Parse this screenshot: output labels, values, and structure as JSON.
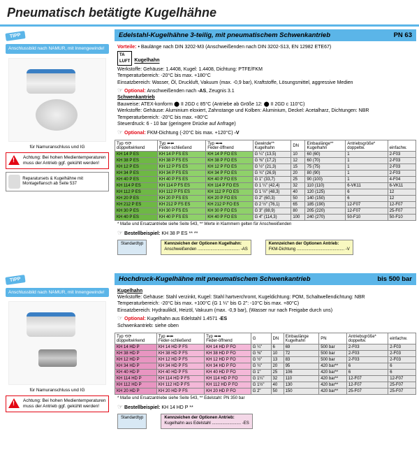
{
  "page_title": "Pneumatisch betätigte Kugelhähne",
  "tipp_label": "TIPP",
  "namur_text": "Anschlussbild nach NAMUR, mit Innengewinde!",
  "section1": {
    "title": "Edelstahl-Kugelhähne 3-teilig, mit pneumatischem Schwenkantrieb",
    "pn": "PN 63",
    "vorteile_label": "Vorteile:",
    "vorteile_text": " • Baulänge nach DIN 3202-M3 (Anschweißenden nach DIN 3202-S13, EN 12982 ETE67)",
    "kh_label": "Kugelhahn",
    "werkstoffe": "Werkstoffe: Gehäuse: 1.4408, Kugel: 1.4408, Dichtung: PTFE/FKM",
    "temp": "Temperaturbereich: -20°C bis max. +180°C",
    "einsatz": "Einsatzbereich: Wasser, Öl, Druckluft, Vakuum (max. -0,9 bar), Kraftstoffe, Lösungsmittel, aggressive Medien",
    "opt1": "Optional: Anschweißenden nach -AS, Zeugnis 3.1",
    "schwenk_label": "Schwenkantrieb",
    "bauweise": "Bauweise: ATEX-konform ⬤ II 2GD c 85°C (Antriebe ab Größe 12: ⬤ II 2GD c 110°C)",
    "werkstoffe2": "Werkstoffe: Gehäuse: Aluminium eloxiert, Zahnstange und Kolben: Aluminium, Deckel: Acetalharz, Dichtungen: NBR",
    "temp2": "Temperaturbereich: -20°C bis max. +80°C",
    "steuer": "Steuerdruck: 6 - 10 bar (geringere Drücke auf Anfrage)",
    "opt2": "Optional: FKM-Dichtung (-20°C bis max. +120°C) -V",
    "img_caption": "für Namuranschluss und IG",
    "warning": "Achtung: Bei hohen Medientemperaturen muss der Antrieb ggf. gekühlt werden!",
    "spare": "Reparatursets & Kugelhähne mit Montageflansch ab Seite 537",
    "footnote": "* Maße und Ersatzantriebe siehe Seite 543, ** Werte in Klammern gelten für Anschweißenden",
    "order_label": "Bestellbeispiel:",
    "order_ex": "KH 38 P ES ** **",
    "callout1_t": "Standardtyp",
    "callout2_h": "Kennzeichen der Optionen Kugelhahn:",
    "callout2_t": "Anschweißenden .................................... -AS",
    "callout3_h": "Kennzeichen der Optionen Antrieb:",
    "callout3_t": "FKM-Dichtung ......................................... -V",
    "headers": [
      "Typ ⟲⟳\ndoppeltwirkend",
      "Typ ⬅⬅\nFeder-schließend",
      "Typ ➡➡\nFeder-öffnend",
      "Gewinde**\nKugelhahn",
      "DN",
      "Einbaulänge**\nKugelhahn",
      "Antriebsgröße*\ndoppeltw.",
      "\neinfachw."
    ],
    "rows": [
      [
        "KH 14 P ES",
        "KH 14 P FS ES",
        "KH 14 P FO ES",
        "G ¼\" (13,5)",
        "10",
        "60 (60)",
        "1",
        "2-F03"
      ],
      [
        "KH 38 P ES",
        "KH 38 P FS ES",
        "KH 38 P FO ES",
        "G ⅜\" (17,2)",
        "12",
        "60 (70)",
        "1",
        "2-F03"
      ],
      [
        "KH 12 P ES",
        "KH 12 P FS ES",
        "KH 12 P FO ES",
        "G ½\" (21,3)",
        "15",
        "75 (75)",
        "1",
        "2-F03"
      ],
      [
        "KH 34 P ES",
        "KH 34 P FS ES",
        "KH 34 P FO ES",
        "G ¾\" (26,9)",
        "20",
        "80 (90)",
        "1",
        "2-F03"
      ],
      [
        "KH 40 P ES",
        "KH 40 P FS ES",
        "KH 40 P FO ES",
        "G 1\" (33,7)",
        "25",
        "90 (100)",
        "1",
        "4-F04"
      ],
      [
        "KH 114 P ES",
        "KH 114 P FS ES",
        "KH 114 P FO ES",
        "G 1 ¼\" (42,4)",
        "32",
        "110 (110)",
        "6-VK11",
        "6-VK11"
      ],
      [
        "KH 112 P ES",
        "KH 112 P FS ES",
        "KH 112 P FO ES",
        "G 1 ½\" (48,3)",
        "40",
        "120 (125)",
        "6",
        "12"
      ],
      [
        "KH 20 P ES",
        "KH 20 P FS ES",
        "KH 20 P FO ES",
        "G 2\" (60,3)",
        "50",
        "140 (150)",
        "6",
        "12"
      ],
      [
        "KH 212 P ES",
        "KH 212 P FS ES",
        "KH 212 P FO ES",
        "G 2 ½\" (76,1)",
        "65",
        "185 (190)",
        "12-F07",
        "12-F07"
      ],
      [
        "KH 30 P ES",
        "KH 30 P FS ES",
        "KH 30 P FO ES",
        "G 3\" (88,9)",
        "80",
        "205 (220)",
        "12-F07",
        "25-F07"
      ],
      [
        "KH 40 P ES",
        "KH 40 P FS ES",
        "KH 40 P FO ES",
        "G 4\" (114,3)",
        "100",
        "240 (270)",
        "50-F10",
        "50-F10"
      ]
    ]
  },
  "section2": {
    "title": "Hochdruck-Kugelhähne mit pneumatischem Schwenkantrieb",
    "pn": "bis 500 bar",
    "kh_label": "Kugelhahn",
    "werkstoffe": "Werkstoffe: Gehäuse: Stahl verzinkt, Kugel: Stahl hartverchromt, Kugeldichtung: POM, Schaltwellendichtung: NBR",
    "temp": "Temperaturbereich: -20°C bis max. +100°C (G 1 ¼\" bis G 2\": -10°C bis max. +80°C)",
    "einsatz": "Einsatzbereich: Hydrauliköl, Heizöl, Vakuum (max. -0,9 bar), (Wasser nur nach Freigabe durch uns)",
    "opt1": "Optional: Kugelhahn aus Edelstahl 1.4571 -ES",
    "schwenk": "Schwenkantrieb: siehe oben",
    "img_caption": "für Namuranschluss und IG",
    "warning": "Achtung: Bei hohen Medientemperaturen muss der Antrieb ggf. gekühlt werden!",
    "footnote": "* Maße und Ersatzantriebe siehe Seite 543, ** Edelstahl: PN 350 bar",
    "order_label": "Bestellbeispiel:",
    "order_ex": "KH 14 HD P **",
    "callout1_t": "Standardtyp",
    "callout3_h": "Kennzeichen der Optionen Antrieb:",
    "callout3_t": "Kugelhahn aus Edelstahl ......................... -ES",
    "headers": [
      "Typ ⟲⟳\ndoppeltwirkend",
      "Typ ⬅⬅\nFeder-schließend",
      "Typ ➡➡\nFeder-öffnend",
      "G",
      "DN",
      "Einbaulänge\nKugelhahn",
      "PN",
      "Antriebsgröße*\ndoppeltw.",
      "einfachw."
    ],
    "rows": [
      [
        "KH 14 HD P",
        "KH 14 HD P FS",
        "KH 14 HD P FO",
        "G ¼\"",
        "6",
        "69",
        "500 bar",
        "2-F03",
        "2-F03"
      ],
      [
        "KH 38 HD P",
        "KH 38 HD P FS",
        "KH 38 HD P FO",
        "G ⅜\"",
        "10",
        "72",
        "500 bar",
        "2-F03",
        "2-F03"
      ],
      [
        "KH 12 HD P",
        "KH 12 HD P FS",
        "KH 12 HD P FO",
        "G ½\"",
        "13",
        "83",
        "500 bar",
        "2-F03",
        "2-F03"
      ],
      [
        "KH 34 HD P",
        "KH 34 HD P FS",
        "KH 34 HD P FO",
        "G ¾\"",
        "20",
        "95",
        "420 bar**",
        "6",
        "6"
      ],
      [
        "KH 40 HD P",
        "KH 40 HD P FS",
        "KH 40 HD P FO",
        "G 1\"",
        "25",
        "106",
        "420 bar**",
        "6",
        "6"
      ],
      [
        "KH 114 HD P",
        "KH 114 HD P FS",
        "KH 114 HD P FO",
        "G 1¼\"",
        "32",
        "110",
        "420 bar**",
        "12-F07",
        "12-F07"
      ],
      [
        "KH 112 HD P",
        "KH 112 HD P FS",
        "KH 112 HD P FO",
        "G 1½\"",
        "40",
        "130",
        "420 bar**",
        "12-F07",
        "25-F07"
      ],
      [
        "KH 20 HD P",
        "KH 20 HD P FS",
        "KH 20 HD P FO",
        "G 2\"",
        "50",
        "150",
        "420 bar**",
        "25-F07",
        "25-F07"
      ]
    ]
  }
}
